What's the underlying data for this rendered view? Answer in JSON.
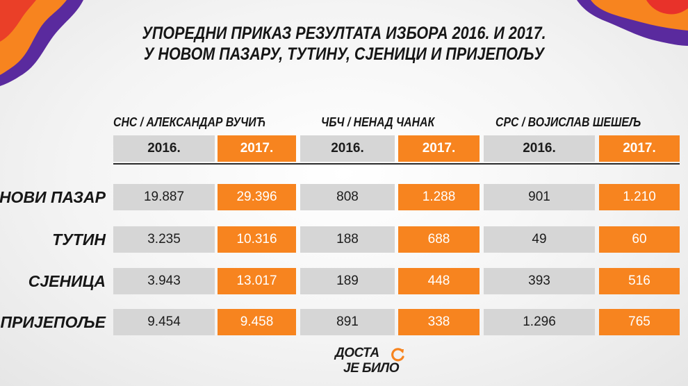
{
  "title": {
    "line1": "УПОРЕДНИ ПРИКАЗ РЕЗУЛТАТА ИЗБОРА 2016. И 2017.",
    "line2": "У НОВОМ ПАЗАРУ, ТУТИНУ, СЈЕНИЦИ И ПРИЈЕПОЉУ"
  },
  "parties": [
    {
      "label": "СНС / АЛЕКСАНДАР ВУЧИЋ",
      "year_a": "2016.",
      "year_b": "2017."
    },
    {
      "label": "ЧБЧ / НЕНАД ЧАНАК",
      "year_a": "2016.",
      "year_b": "2017."
    },
    {
      "label": "СРС / ВОЈИСЛАВ ШЕШЕЉ",
      "year_a": "2016.",
      "year_b": "2017."
    }
  ],
  "rows": [
    {
      "label": "НОВИ ПАЗАР",
      "values": [
        "19.887",
        "29.396",
        "808",
        "1.288",
        "901",
        "1.210"
      ]
    },
    {
      "label": "ТУТИН",
      "values": [
        "3.235",
        "10.316",
        "188",
        "688",
        "49",
        "60"
      ]
    },
    {
      "label": "СЈЕНИЦА",
      "values": [
        "3.943",
        "13.017",
        "189",
        "448",
        "393",
        "516"
      ]
    },
    {
      "label": "ПРИЈЕПОЉЕ",
      "values": [
        "9.454",
        "9.458",
        "891",
        "338",
        "1.296",
        "765"
      ]
    }
  ],
  "logo": {
    "line1": "ДОСТА",
    "line2": "ЈЕ БИЛО"
  },
  "colors": {
    "accent": "#f7841f",
    "grey_cell": "#d6d6d6",
    "deco_purple": "#5a2a9e",
    "deco_red": "#e8322a"
  },
  "icons": {
    "logo_mark": "circular-arrow-icon"
  }
}
